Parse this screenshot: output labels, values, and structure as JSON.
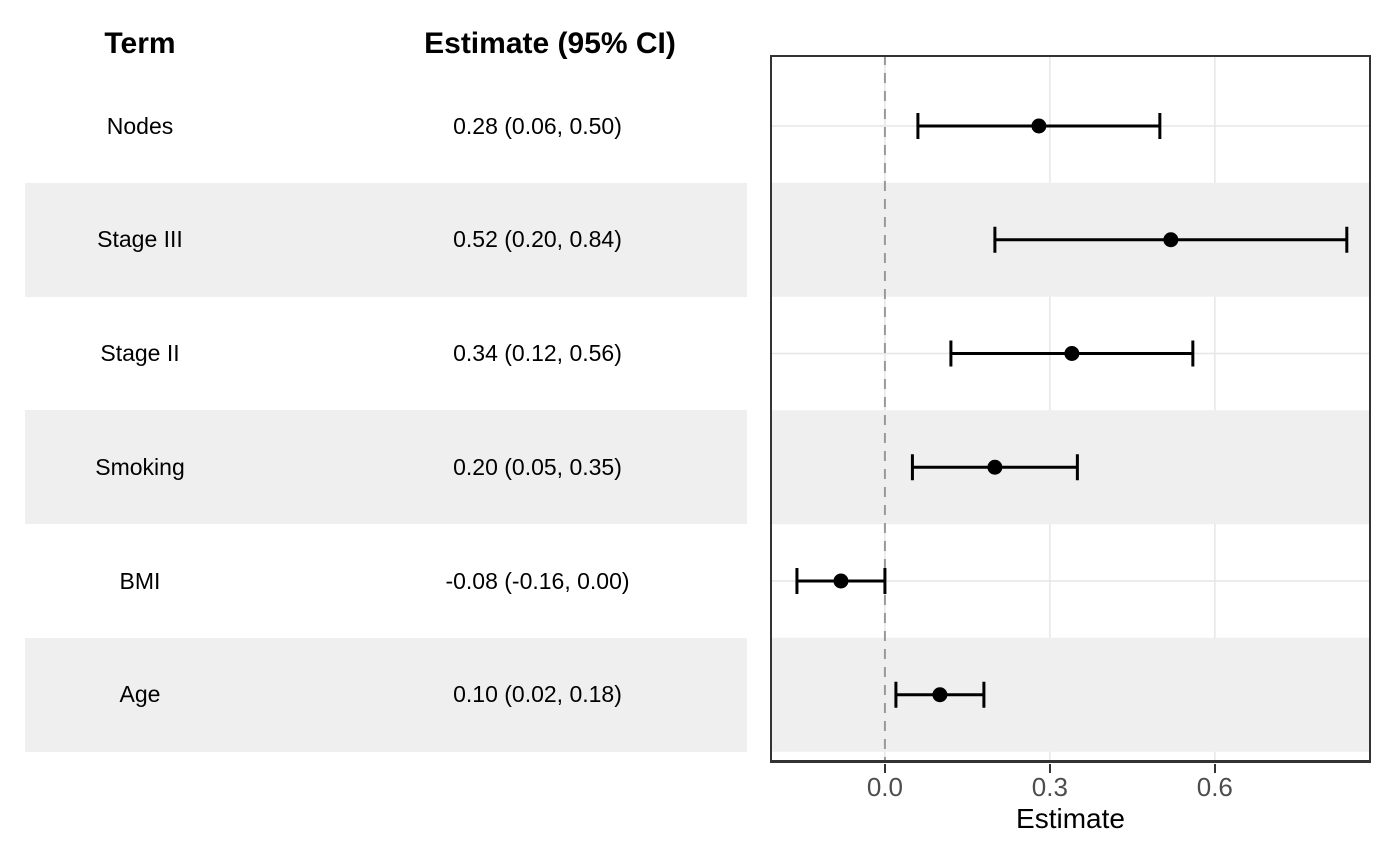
{
  "table": {
    "headers": [
      "Term",
      "Estimate (95% CI)"
    ],
    "rows": [
      {
        "term": "Nodes",
        "estimate_label": "0.28 (0.06, 0.50)"
      },
      {
        "term": "Stage III",
        "estimate_label": "0.52 (0.20, 0.84)"
      },
      {
        "term": "Stage II",
        "estimate_label": "0.34 (0.12, 0.56)"
      },
      {
        "term": "Smoking",
        "estimate_label": "0.20 (0.05, 0.35)"
      },
      {
        "term": "BMI",
        "estimate_label": "-0.08 (-0.16, 0.00)"
      },
      {
        "term": "Age",
        "estimate_label": "0.10 (0.02, 0.18)"
      }
    ]
  },
  "chart_data": {
    "type": "scatter",
    "subtype": "forest-plot",
    "categories": [
      "Nodes",
      "Stage III",
      "Stage II",
      "Smoking",
      "BMI",
      "Age"
    ],
    "series": [
      {
        "name": "Estimate",
        "values": [
          0.28,
          0.52,
          0.34,
          0.2,
          -0.08,
          0.1
        ],
        "ci_lower": [
          0.06,
          0.2,
          0.12,
          0.05,
          -0.16,
          0.02
        ],
        "ci_upper": [
          0.5,
          0.84,
          0.56,
          0.35,
          0.0,
          0.18
        ]
      }
    ],
    "title": "",
    "xlabel": "Estimate",
    "ylabel": "",
    "x_tick_labels": [
      "0.0",
      "0.3",
      "0.6"
    ],
    "x_tick_values": [
      0,
      0.3,
      0.6
    ],
    "xlim": [
      -0.209,
      0.884
    ],
    "reference_line_x": 0,
    "grid": "major-only",
    "legend": "none",
    "striped_row_indices": [
      1,
      3,
      5
    ]
  },
  "colors": {
    "background": "#FFFFFF",
    "text": "#000000",
    "stripe": "#EFEFEF",
    "grid": "#E6E6E6",
    "panel_border": "#333333",
    "reference_line": "#999999",
    "marker": "#000000",
    "error_bar": "#000000",
    "tick_mark": "#333333",
    "tick_label": "#4D4D4D",
    "axis_title": "#000000"
  }
}
